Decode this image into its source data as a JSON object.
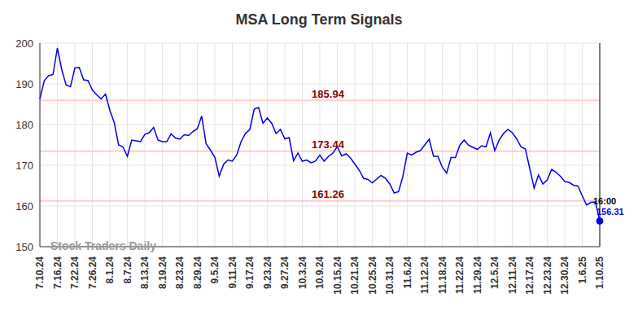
{
  "chart_data": {
    "type": "line",
    "title": "MSA Long Term Signals",
    "watermark": "Stock Traders Daily",
    "last_time": "16:00",
    "color": "#0000ee",
    "signal_color": "#8b0000",
    "ylim": [
      150,
      200
    ],
    "yticks": [
      150,
      160,
      170,
      180,
      190,
      200
    ],
    "grid": true,
    "signal_levels": [
      185.94,
      173.44,
      161.26
    ],
    "categories": [
      "7.10.24",
      null,
      null,
      null,
      "7.16.24",
      null,
      null,
      null,
      "7.22.24",
      null,
      null,
      null,
      "7.26.24",
      null,
      null,
      null,
      "8.1.24",
      null,
      null,
      null,
      "8.7.24",
      null,
      null,
      null,
      "8.13.24",
      null,
      null,
      null,
      "8.19.24",
      null,
      null,
      null,
      "8.23.24",
      null,
      null,
      null,
      "8.29.24",
      null,
      null,
      null,
      "9.5.24",
      null,
      null,
      null,
      "9.11.24",
      null,
      null,
      null,
      "9.17.24",
      null,
      null,
      null,
      "9.23.24",
      null,
      null,
      null,
      "9.27.24",
      null,
      null,
      null,
      "10.3.24",
      null,
      null,
      null,
      "10.9.24",
      null,
      null,
      null,
      "10.15.24",
      null,
      null,
      null,
      "10.21.24",
      null,
      null,
      null,
      "10.25.24",
      null,
      null,
      null,
      "10.31.24",
      null,
      null,
      null,
      "11.6.24",
      null,
      null,
      null,
      "11.12.24",
      null,
      null,
      null,
      "11.18.24",
      null,
      null,
      null,
      "11.22.24",
      null,
      null,
      null,
      "11.29.24",
      null,
      null,
      null,
      "12.5.24",
      null,
      null,
      null,
      "12.11.24",
      null,
      null,
      null,
      "12.17.24",
      null,
      null,
      null,
      "12.23.24",
      null,
      null,
      null,
      "12.30.24",
      null,
      null,
      null,
      "1.6.25",
      null,
      null,
      null,
      "1.10.25"
    ],
    "values": [
      186.3,
      190.8,
      192,
      192.3,
      198.8,
      193.5,
      189.7,
      189.3,
      193.9,
      194,
      191,
      190.8,
      188.5,
      187.3,
      186.3,
      187.5,
      183.5,
      180.5,
      175,
      174.5,
      172.2,
      176.2,
      176,
      175.8,
      177.6,
      178,
      179.3,
      176.2,
      175.8,
      175.8,
      177.7,
      176.7,
      176.4,
      177.5,
      177.3,
      178.3,
      179,
      182.1,
      175.3,
      173.7,
      172,
      167.3,
      170.2,
      171.3,
      171,
      172.5,
      175.8,
      177.8,
      178.8,
      183.8,
      184.2,
      180.3,
      181.6,
      180.3,
      177.8,
      178.8,
      176.5,
      176.8,
      171.1,
      173,
      171,
      171.3,
      170.6,
      171,
      172.5,
      171,
      172.2,
      173,
      174.6,
      172.3,
      172.8,
      171.8,
      170.3,
      168.8,
      166.8,
      166.5,
      165.7,
      166.6,
      167.5,
      166.8,
      165.4,
      163.2,
      163.5,
      167.3,
      173,
      172.5,
      173.2,
      173.6,
      175,
      176.4,
      172.2,
      172.2,
      169.5,
      168.1,
      171.9,
      171.9,
      174.9,
      176.2,
      174.9,
      174.4,
      173.9,
      174.8,
      174.5,
      178,
      173.6,
      176.2,
      177.8,
      178.8,
      178,
      176.5,
      174.5,
      174,
      169.2,
      164.4,
      167.6,
      165.4,
      166.4,
      169,
      168.3,
      167.3,
      166,
      165.8,
      165.1,
      164.9,
      162.5,
      160.2,
      160.9,
      161,
      156.31
    ]
  }
}
